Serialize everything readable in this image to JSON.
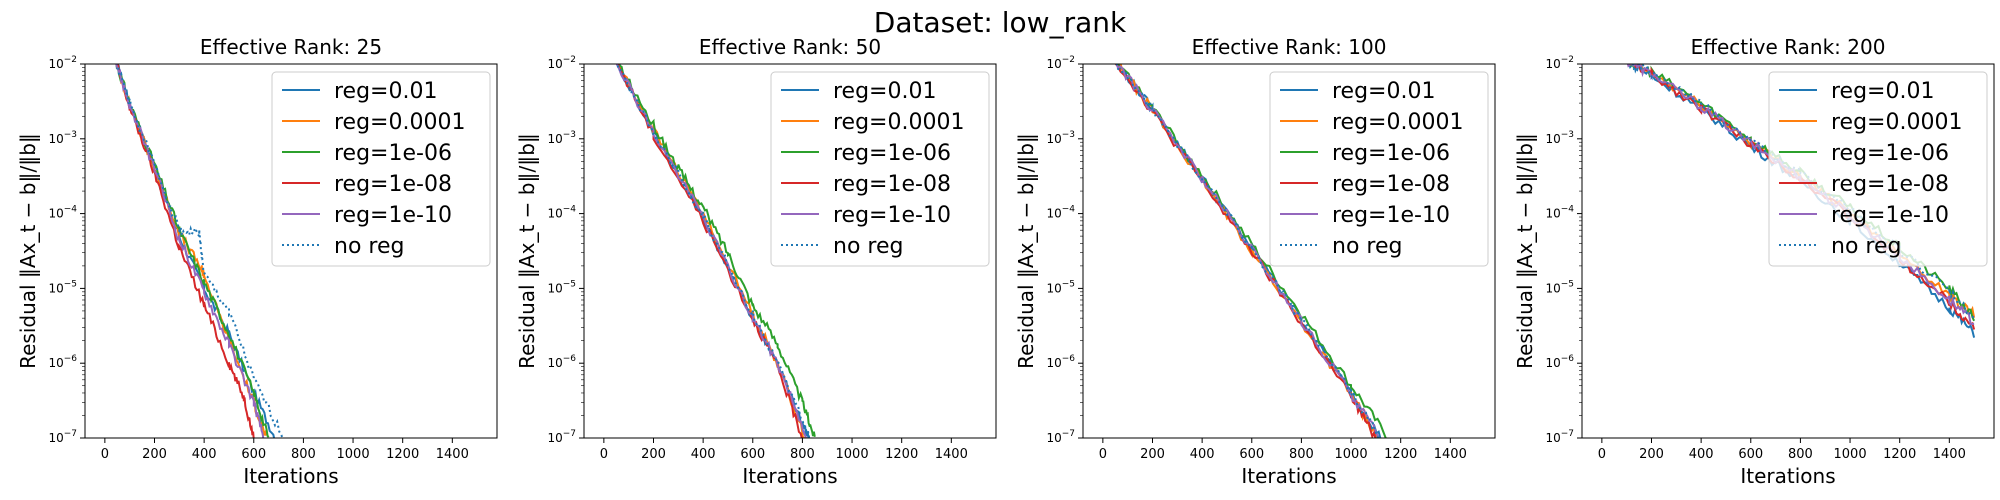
{
  "suptitle": "Dataset: low_rank",
  "colors": {
    "reg=0.01": "#1f77b4",
    "reg=0.0001": "#ff7f0e",
    "reg=1e-06": "#2ca02c",
    "reg=1e-08": "#d62728",
    "reg=1e-10": "#9467bd",
    "no reg": "#1f77b4"
  },
  "chart_data": [
    {
      "type": "line",
      "title": "Effective Rank: 25",
      "xlabel": "Iterations",
      "ylabel": "Residual ‖Ax_t − b‖/‖b‖",
      "xlim": [
        -80,
        1580
      ],
      "ylim": [
        1e-07,
        0.01
      ],
      "yscale": "log",
      "xticks": [
        0,
        200,
        400,
        600,
        800,
        1000,
        1200,
        1400
      ],
      "yticks": [
        1e-07,
        1e-06,
        1e-05,
        0.0001,
        0.001,
        0.01
      ],
      "legend": "upper right",
      "series": [
        {
          "name": "reg=0.01",
          "style": "solid",
          "points": [
            [
              40,
              0.012
            ],
            [
              100,
              0.003
            ],
            [
              200,
              0.0004
            ],
            [
              300,
              5e-05
            ],
            [
              400,
              1e-05
            ],
            [
              500,
              2.5e-06
            ],
            [
              600,
              4e-07
            ],
            [
              700,
              8e-08
            ]
          ]
        },
        {
          "name": "reg=0.0001",
          "style": "solid",
          "points": [
            [
              40,
              0.012
            ],
            [
              100,
              0.0028
            ],
            [
              200,
              0.0004
            ],
            [
              300,
              5.5e-05
            ],
            [
              390,
              1.8e-05
            ],
            [
              400,
              1.5e-05
            ],
            [
              500,
              2e-06
            ],
            [
              600,
              3e-07
            ],
            [
              650,
              1e-07
            ]
          ]
        },
        {
          "name": "reg=1e-06",
          "style": "solid",
          "points": [
            [
              40,
              0.012
            ],
            [
              100,
              0.003
            ],
            [
              200,
              0.00045
            ],
            [
              300,
              6e-05
            ],
            [
              400,
              1.2e-05
            ],
            [
              500,
              2.5e-06
            ],
            [
              600,
              4e-07
            ],
            [
              660,
              1e-07
            ]
          ]
        },
        {
          "name": "reg=1e-08",
          "style": "solid",
          "points": [
            [
              40,
              0.012
            ],
            [
              100,
              0.0026
            ],
            [
              200,
              0.00035
            ],
            [
              300,
              3.5e-05
            ],
            [
              400,
              6e-06
            ],
            [
              500,
              1e-06
            ],
            [
              560,
              3.5e-07
            ],
            [
              600,
              1e-07
            ]
          ]
        },
        {
          "name": "reg=1e-10",
          "style": "solid",
          "points": [
            [
              40,
              0.012
            ],
            [
              100,
              0.0028
            ],
            [
              200,
              0.0004
            ],
            [
              300,
              4.5e-05
            ],
            [
              400,
              9e-06
            ],
            [
              500,
              1.8e-06
            ],
            [
              600,
              3e-07
            ],
            [
              640,
              1e-07
            ]
          ]
        },
        {
          "name": "no reg",
          "style": "dotted",
          "points": [
            [
              40,
              0.012
            ],
            [
              100,
              0.003
            ],
            [
              200,
              0.00045
            ],
            [
              300,
              6e-05
            ],
            [
              380,
              5.5e-05
            ],
            [
              400,
              1.5e-05
            ],
            [
              500,
              5e-06
            ],
            [
              600,
              6e-07
            ],
            [
              720,
              1e-07
            ]
          ]
        }
      ]
    },
    {
      "type": "line",
      "title": "Effective Rank: 50",
      "xlabel": "Iterations",
      "ylabel": "Residual ‖Ax_t − b‖/‖b‖",
      "xlim": [
        -80,
        1580
      ],
      "ylim": [
        1e-07,
        0.01
      ],
      "yscale": "log",
      "xticks": [
        0,
        200,
        400,
        600,
        800,
        1000,
        1200,
        1400
      ],
      "yticks": [
        1e-07,
        1e-06,
        1e-05,
        0.0001,
        0.001,
        0.01
      ],
      "legend": "upper right",
      "series": [
        {
          "name": "reg=0.01",
          "style": "solid",
          "points": [
            [
              50,
              0.011
            ],
            [
              200,
              0.0012
            ],
            [
              400,
              9e-05
            ],
            [
              600,
              4e-06
            ],
            [
              700,
              1e-06
            ],
            [
              800,
              1.5e-07
            ],
            [
              830,
              1e-07
            ]
          ]
        },
        {
          "name": "reg=0.0001",
          "style": "solid",
          "points": [
            [
              50,
              0.011
            ],
            [
              200,
              0.0013
            ],
            [
              400,
              0.0001
            ],
            [
              600,
              4.5e-06
            ],
            [
              700,
              1e-06
            ],
            [
              810,
              1e-07
            ]
          ]
        },
        {
          "name": "reg=1e-06",
          "style": "solid",
          "points": [
            [
              50,
              0.011
            ],
            [
              200,
              0.0015
            ],
            [
              300,
              0.0004
            ],
            [
              400,
              0.00012
            ],
            [
              500,
              3e-05
            ],
            [
              600,
              6e-06
            ],
            [
              700,
              1.8e-06
            ],
            [
              800,
              3e-07
            ],
            [
              850,
              1e-07
            ]
          ]
        },
        {
          "name": "reg=1e-08",
          "style": "solid",
          "points": [
            [
              50,
              0.011
            ],
            [
              200,
              0.0011
            ],
            [
              400,
              8e-05
            ],
            [
              600,
              4e-06
            ],
            [
              700,
              9e-07
            ],
            [
              800,
              1e-07
            ]
          ]
        },
        {
          "name": "reg=1e-10",
          "style": "solid",
          "points": [
            [
              50,
              0.011
            ],
            [
              200,
              0.0012
            ],
            [
              400,
              9e-05
            ],
            [
              600,
              4e-06
            ],
            [
              700,
              1e-06
            ],
            [
              820,
              1e-07
            ]
          ]
        },
        {
          "name": "no reg",
          "style": "dotted",
          "points": [
            [
              50,
              0.011
            ],
            [
              200,
              0.0012
            ],
            [
              400,
              9.5e-05
            ],
            [
              600,
              4.5e-06
            ],
            [
              700,
              1e-06
            ],
            [
              830,
              1e-07
            ]
          ]
        }
      ]
    },
    {
      "type": "line",
      "title": "Effective Rank: 100",
      "xlabel": "Iterations",
      "ylabel": "Residual ‖Ax_t − b‖/‖b‖",
      "xlim": [
        -80,
        1580
      ],
      "ylim": [
        1e-07,
        0.01
      ],
      "yscale": "log",
      "xticks": [
        0,
        200,
        400,
        600,
        800,
        1000,
        1200,
        1400
      ],
      "yticks": [
        1e-07,
        1e-06,
        1e-05,
        0.0001,
        0.001,
        0.01
      ],
      "legend": "upper right",
      "series": [
        {
          "name": "reg=0.01",
          "style": "solid",
          "points": [
            [
              50,
              0.011
            ],
            [
              200,
              0.0025
            ],
            [
              400,
              0.0003
            ],
            [
              600,
              3.5e-05
            ],
            [
              800,
              3.8e-06
            ],
            [
              1000,
              4e-07
            ],
            [
              1120,
              1e-07
            ]
          ]
        },
        {
          "name": "reg=0.0001",
          "style": "solid",
          "points": [
            [
              50,
              0.011
            ],
            [
              200,
              0.0024
            ],
            [
              400,
              0.00028
            ],
            [
              600,
              3.2e-05
            ],
            [
              800,
              3.5e-06
            ],
            [
              1000,
              3.8e-07
            ],
            [
              1110,
              1e-07
            ]
          ]
        },
        {
          "name": "reg=1e-06",
          "style": "solid",
          "points": [
            [
              50,
              0.011
            ],
            [
              200,
              0.0026
            ],
            [
              400,
              0.00032
            ],
            [
              600,
              3.8e-05
            ],
            [
              800,
              4.5e-06
            ],
            [
              1000,
              5e-07
            ],
            [
              1150,
              1e-07
            ]
          ]
        },
        {
          "name": "reg=1e-08",
          "style": "solid",
          "points": [
            [
              50,
              0.011
            ],
            [
              200,
              0.0023
            ],
            [
              400,
              0.00027
            ],
            [
              600,
              3.1e-05
            ],
            [
              800,
              3.4e-06
            ],
            [
              1000,
              3.6e-07
            ],
            [
              1100,
              1e-07
            ]
          ]
        },
        {
          "name": "reg=1e-10",
          "style": "solid",
          "points": [
            [
              50,
              0.011
            ],
            [
              200,
              0.0024
            ],
            [
              400,
              0.00029
            ],
            [
              600,
              3.3e-05
            ],
            [
              800,
              3.6e-06
            ],
            [
              1000,
              3.9e-07
            ],
            [
              1115,
              1e-07
            ]
          ]
        },
        {
          "name": "no reg",
          "style": "dotted",
          "points": [
            [
              50,
              0.011
            ],
            [
              200,
              0.0025
            ],
            [
              400,
              0.0003
            ],
            [
              600,
              3.5e-05
            ],
            [
              800,
              3.8e-06
            ],
            [
              1000,
              4.1e-07
            ],
            [
              1120,
              1e-07
            ]
          ]
        }
      ]
    },
    {
      "type": "line",
      "title": "Effective Rank: 200",
      "xlabel": "Iterations",
      "ylabel": "Residual ‖Ax_t − b‖/‖b‖",
      "xlim": [
        -80,
        1580
      ],
      "ylim": [
        1e-07,
        0.01
      ],
      "yscale": "log",
      "xticks": [
        0,
        200,
        400,
        600,
        800,
        1000,
        1200,
        1400
      ],
      "yticks": [
        1e-07,
        1e-06,
        1e-05,
        0.0001,
        0.001,
        0.01
      ],
      "legend": "upper right",
      "series": [
        {
          "name": "reg=0.01",
          "style": "solid",
          "points": [
            [
              100,
              0.011
            ],
            [
              200,
              0.007
            ],
            [
              400,
              0.0025
            ],
            [
              600,
              0.0008
            ],
            [
              800,
              0.00028
            ],
            [
              1000,
              8e-05
            ],
            [
              1200,
              2.2e-05
            ],
            [
              1400,
              5.5e-06
            ],
            [
              1500,
              2.5e-06
            ]
          ]
        },
        {
          "name": "reg=0.0001",
          "style": "solid",
          "points": [
            [
              100,
              0.011
            ],
            [
              200,
              0.0075
            ],
            [
              400,
              0.0028
            ],
            [
              600,
              0.0009
            ],
            [
              800,
              0.00032
            ],
            [
              1000,
              0.0001
            ],
            [
              1200,
              3e-05
            ],
            [
              1400,
              8e-06
            ],
            [
              1500,
              4.5e-06
            ]
          ]
        },
        {
          "name": "reg=1e-06",
          "style": "solid",
          "points": [
            [
              100,
              0.011
            ],
            [
              200,
              0.0078
            ],
            [
              400,
              0.003
            ],
            [
              600,
              0.001
            ],
            [
              800,
              0.00035
            ],
            [
              1000,
              0.00012
            ],
            [
              1200,
              3.5e-05
            ],
            [
              1400,
              1e-05
            ],
            [
              1500,
              4e-06
            ]
          ]
        },
        {
          "name": "reg=1e-08",
          "style": "solid",
          "points": [
            [
              100,
              0.011
            ],
            [
              200,
              0.0072
            ],
            [
              400,
              0.0026
            ],
            [
              600,
              0.00085
            ],
            [
              800,
              0.0003
            ],
            [
              1000,
              9e-05
            ],
            [
              1200,
              2.5e-05
            ],
            [
              1400,
              6.5e-06
            ],
            [
              1500,
              3e-06
            ]
          ]
        },
        {
          "name": "reg=1e-10",
          "style": "solid",
          "points": [
            [
              100,
              0.011
            ],
            [
              200,
              0.0073
            ],
            [
              400,
              0.0027
            ],
            [
              600,
              0.00088
            ],
            [
              800,
              0.00031
            ],
            [
              1000,
              9.5e-05
            ],
            [
              1200,
              2.7e-05
            ],
            [
              1400,
              7e-06
            ],
            [
              1500,
              3.5e-06
            ]
          ]
        },
        {
          "name": "no reg",
          "style": "dotted",
          "points": [
            [
              100,
              0.011
            ],
            [
              200,
              0.0076
            ],
            [
              400,
              0.0029
            ],
            [
              600,
              0.00095
            ],
            [
              800,
              0.00034
            ],
            [
              1000,
              0.00011
            ],
            [
              1200,
              3.3e-05
            ],
            [
              1400,
              9e-06
            ],
            [
              1500,
              4e-06
            ]
          ]
        }
      ]
    }
  ]
}
